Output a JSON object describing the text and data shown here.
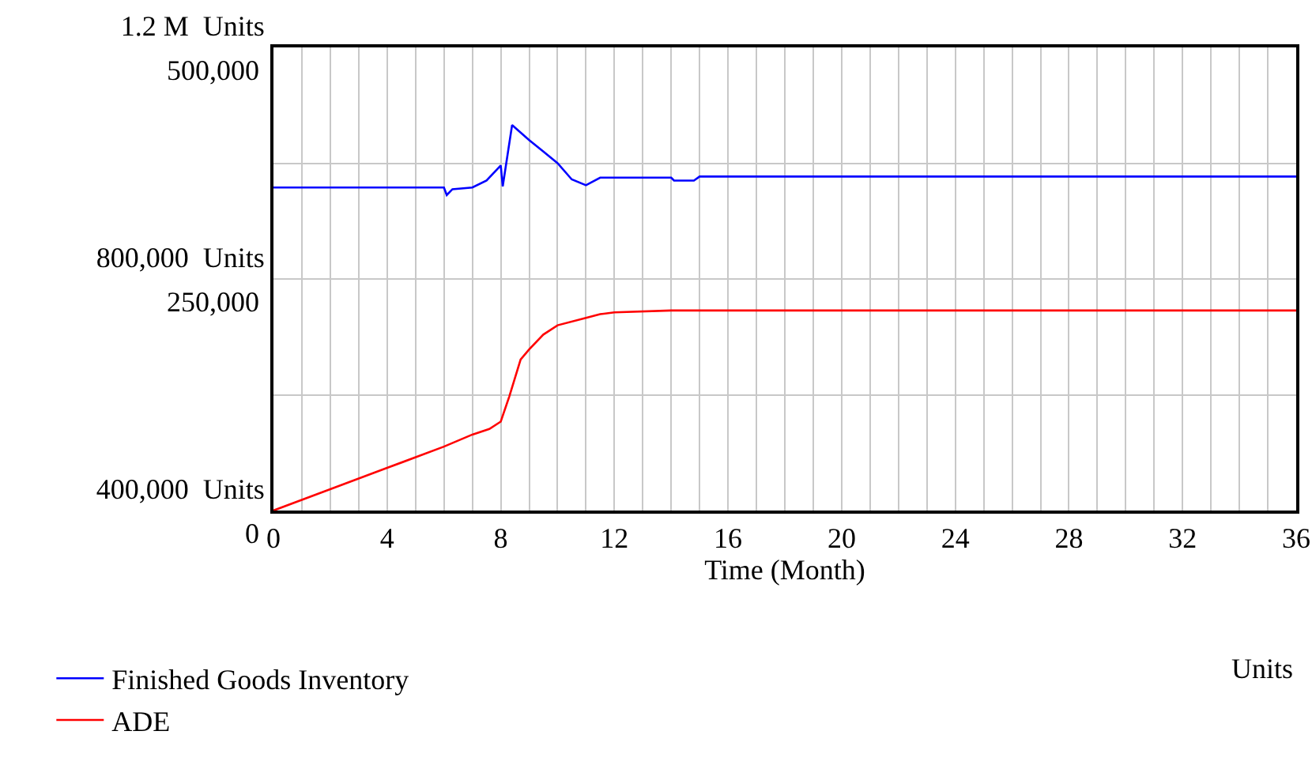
{
  "chart_data": {
    "type": "line",
    "xlabel": "Time (Month)",
    "xlim": [
      0,
      36
    ],
    "xticks": [
      0,
      4,
      8,
      12,
      16,
      20,
      24,
      28,
      32,
      36
    ],
    "ylim": [
      400000,
      1200000
    ],
    "yticks": [
      {
        "value": 400000,
        "label": "400,000  Units"
      },
      {
        "value": 800000,
        "label": "800,000  Units"
      },
      {
        "value": 1200000,
        "label": "1.2 M  Units"
      }
    ],
    "y2lim": [
      0,
      500000
    ],
    "y2ticks": [
      0,
      {
        "value": 250000,
        "label": "250,000"
      },
      {
        "value": 500000,
        "label": "500,000"
      }
    ],
    "grid": true,
    "legend": "bottom",
    "annotations": [
      "Units"
    ],
    "series": [
      {
        "name": "Finished Goods Inventory",
        "color": "#0000ff",
        "x": [
          0,
          6,
          6.1,
          6.3,
          7,
          7.5,
          8,
          8.07,
          8.4,
          9,
          9.5,
          10,
          10.5,
          11,
          11.5,
          14,
          14.1,
          14.8,
          15,
          36
        ],
        "values": [
          958000,
          958000,
          945000,
          955000,
          958000,
          970000,
          996000,
          960000,
          1066000,
          1040000,
          1020000,
          1000000,
          972000,
          962000,
          975000,
          975000,
          970000,
          970000,
          977000,
          977000
        ]
      },
      {
        "name": "ADE",
        "color": "#ff0000",
        "axis": "y2",
        "x": [
          0,
          2,
          4,
          6,
          7,
          7.6,
          8,
          8.3,
          8.7,
          9,
          9.5,
          10,
          11,
          11.5,
          12,
          14,
          36
        ],
        "values": [
          0,
          23000,
          46000,
          69000,
          82000,
          88000,
          96000,
          123000,
          163000,
          174000,
          190000,
          200000,
          208000,
          212000,
          214000,
          216000,
          216000
        ]
      }
    ]
  }
}
